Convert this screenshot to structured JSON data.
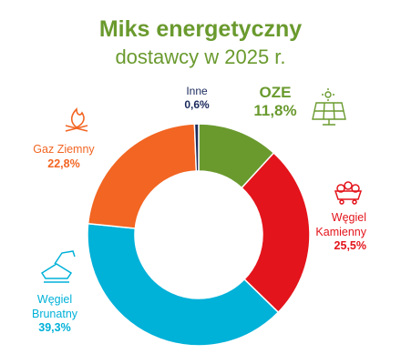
{
  "chart_data": {
    "type": "donut",
    "title": "Miks energetyczny",
    "subtitle": "dostawcy w 2025 r.",
    "categories": [
      "OZE",
      "Węgiel Kamienny",
      "Węgiel Brunatny",
      "Gaz Ziemny",
      "Inne"
    ],
    "values": [
      11.8,
      25.5,
      39.3,
      22.8,
      0.6
    ],
    "value_labels": [
      "11,8%",
      "25,5%",
      "39,3%",
      "22,8%",
      "0,6%"
    ],
    "colors": [
      "#6a9a2e",
      "#e3141b",
      "#00b1d8",
      "#f26522",
      "#1b2a5c"
    ]
  }
}
